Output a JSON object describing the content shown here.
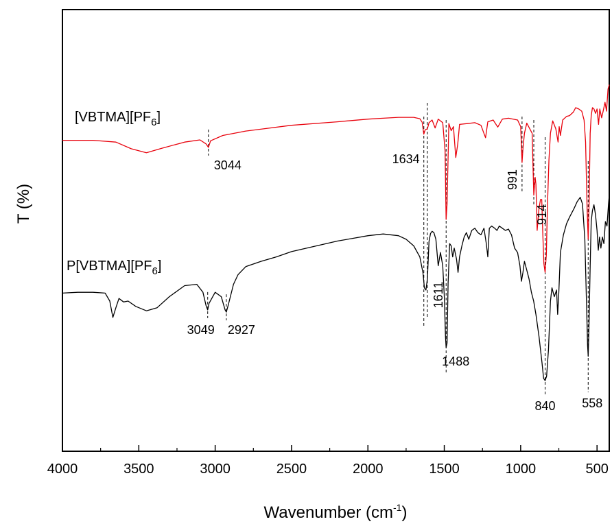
{
  "chart_data": {
    "type": "line",
    "title": "",
    "xlabel": "Wavenumber (cm",
    "xlabel_sup": "-1",
    "xlabel_end": ")",
    "ylabel": "T (%)",
    "xlim": [
      4000,
      420
    ],
    "x_reversed": true,
    "ylim": [
      0,
      100
    ],
    "y_ticks_labeled": false,
    "x_ticks": [
      4000,
      3500,
      3000,
      2500,
      2000,
      1500,
      1000,
      500
    ],
    "x_tick_labels": [
      "4000",
      "3500",
      "3000",
      "2500",
      "2000",
      "1500",
      "1000",
      "500"
    ],
    "grid": false,
    "series": [
      {
        "name": "[VBTMA][PF6]",
        "label_main": "[VBTMA][PF",
        "label_sub": "6",
        "label_end": "]",
        "color": "#e8000b",
        "points": [
          [
            4000,
            70.4
          ],
          [
            3800,
            70.4
          ],
          [
            3650,
            70.0
          ],
          [
            3550,
            68.5
          ],
          [
            3450,
            67.6
          ],
          [
            3350,
            68.6
          ],
          [
            3200,
            70.0
          ],
          [
            3100,
            70.5
          ],
          [
            3060,
            69.6
          ],
          [
            3044,
            68.8
          ],
          [
            3030,
            70.3
          ],
          [
            2950,
            71.5
          ],
          [
            2800,
            72.5
          ],
          [
            2500,
            73.8
          ],
          [
            2200,
            74.6
          ],
          [
            2000,
            75.2
          ],
          [
            1900,
            75.4
          ],
          [
            1800,
            75.6
          ],
          [
            1700,
            75.6
          ],
          [
            1660,
            75.3
          ],
          [
            1645,
            74.5
          ],
          [
            1634,
            71.8
          ],
          [
            1625,
            72.8
          ],
          [
            1611,
            73.0
          ],
          [
            1600,
            74.4
          ],
          [
            1580,
            75.0
          ],
          [
            1560,
            73.2
          ],
          [
            1540,
            75.2
          ],
          [
            1510,
            74.4
          ],
          [
            1495,
            68.0
          ],
          [
            1488,
            52.5
          ],
          [
            1482,
            56.0
          ],
          [
            1470,
            74.2
          ],
          [
            1455,
            72.6
          ],
          [
            1440,
            73.5
          ],
          [
            1425,
            66.5
          ],
          [
            1412,
            69.6
          ],
          [
            1400,
            74.0
          ],
          [
            1350,
            74.2
          ],
          [
            1300,
            74.4
          ],
          [
            1260,
            73.8
          ],
          [
            1230,
            71.0
          ],
          [
            1215,
            74.6
          ],
          [
            1180,
            75.0
          ],
          [
            1150,
            73.4
          ],
          [
            1120,
            75.2
          ],
          [
            1080,
            75.4
          ],
          [
            1020,
            75.0
          ],
          [
            1000,
            73.5
          ],
          [
            991,
            65.4
          ],
          [
            985,
            68.5
          ],
          [
            975,
            72.0
          ],
          [
            960,
            74.3
          ],
          [
            940,
            73.0
          ],
          [
            925,
            72.0
          ],
          [
            914,
            58.0
          ],
          [
            905,
            62.0
          ],
          [
            900,
            60.5
          ],
          [
            892,
            50.0
          ],
          [
            880,
            55.0
          ],
          [
            870,
            57.0
          ],
          [
            862,
            57.0
          ],
          [
            855,
            49.0
          ],
          [
            848,
            42.5
          ],
          [
            840,
            40.5
          ],
          [
            832,
            44.5
          ],
          [
            825,
            55.0
          ],
          [
            815,
            66.0
          ],
          [
            805,
            72.0
          ],
          [
            790,
            74.8
          ],
          [
            770,
            73.0
          ],
          [
            755,
            70.0
          ],
          [
            748,
            73.5
          ],
          [
            740,
            71.5
          ],
          [
            725,
            75.0
          ],
          [
            700,
            75.8
          ],
          [
            680,
            76.0
          ],
          [
            655,
            76.8
          ],
          [
            640,
            77.8
          ],
          [
            620,
            77.5
          ],
          [
            600,
            77.0
          ],
          [
            585,
            75.0
          ],
          [
            575,
            70.0
          ],
          [
            565,
            55.0
          ],
          [
            558,
            48.0
          ],
          [
            552,
            56.0
          ],
          [
            545,
            72.0
          ],
          [
            538,
            76.0
          ],
          [
            530,
            77.8
          ],
          [
            520,
            77.5
          ],
          [
            510,
            76.5
          ],
          [
            500,
            77.5
          ],
          [
            490,
            74.0
          ],
          [
            482,
            77.5
          ],
          [
            470,
            75.5
          ],
          [
            460,
            77.0
          ],
          [
            448,
            79.0
          ],
          [
            438,
            77.0
          ],
          [
            428,
            82.0
          ],
          [
            420,
            83.0
          ]
        ],
        "peaks": [
          {
            "x": 3044,
            "label": "3044"
          },
          {
            "x": 1634,
            "label": "1634"
          },
          {
            "x": 1611,
            "label": ""
          },
          {
            "x": 1488,
            "label": ""
          },
          {
            "x": 991,
            "label": "991"
          },
          {
            "x": 914,
            "label": "914"
          }
        ]
      },
      {
        "name": "P[VBTMA][PF6]",
        "label_main": "P[VBTMA][PF",
        "label_sub": "6",
        "label_end": "]",
        "color": "#000000",
        "points": [
          [
            4000,
            35.8
          ],
          [
            3900,
            36.0
          ],
          [
            3800,
            36.0
          ],
          [
            3720,
            35.8
          ],
          [
            3690,
            34.0
          ],
          [
            3670,
            30.3
          ],
          [
            3650,
            32.5
          ],
          [
            3630,
            34.6
          ],
          [
            3600,
            33.8
          ],
          [
            3570,
            34.0
          ],
          [
            3520,
            32.8
          ],
          [
            3450,
            31.8
          ],
          [
            3380,
            32.5
          ],
          [
            3300,
            35.0
          ],
          [
            3200,
            37.5
          ],
          [
            3120,
            37.8
          ],
          [
            3080,
            36.0
          ],
          [
            3060,
            33.0
          ],
          [
            3049,
            32.0
          ],
          [
            3040,
            33.5
          ],
          [
            3000,
            36.0
          ],
          [
            2960,
            35.0
          ],
          [
            2935,
            32.0
          ],
          [
            2927,
            31.5
          ],
          [
            2915,
            33.0
          ],
          [
            2880,
            37.8
          ],
          [
            2850,
            40.0
          ],
          [
            2800,
            41.8
          ],
          [
            2700,
            43.0
          ],
          [
            2600,
            44.0
          ],
          [
            2500,
            45.2
          ],
          [
            2400,
            46.0
          ],
          [
            2300,
            46.8
          ],
          [
            2200,
            47.6
          ],
          [
            2100,
            48.2
          ],
          [
            2000,
            48.8
          ],
          [
            1900,
            49.2
          ],
          [
            1800,
            48.8
          ],
          [
            1750,
            48.0
          ],
          [
            1700,
            46.5
          ],
          [
            1660,
            44.0
          ],
          [
            1640,
            40.5
          ],
          [
            1630,
            37.0
          ],
          [
            1620,
            36.5
          ],
          [
            1611,
            39.0
          ],
          [
            1600,
            47.5
          ],
          [
            1590,
            49.3
          ],
          [
            1580,
            49.8
          ],
          [
            1568,
            49.5
          ],
          [
            1555,
            48.0
          ],
          [
            1540,
            42.0
          ],
          [
            1525,
            45.0
          ],
          [
            1510,
            42.0
          ],
          [
            1500,
            35.0
          ],
          [
            1492,
            26.0
          ],
          [
            1488,
            23.5
          ],
          [
            1482,
            24.5
          ],
          [
            1475,
            38.0
          ],
          [
            1465,
            47.0
          ],
          [
            1455,
            46.5
          ],
          [
            1445,
            44.0
          ],
          [
            1435,
            46.0
          ],
          [
            1420,
            43.5
          ],
          [
            1410,
            40.5
          ],
          [
            1400,
            44.0
          ],
          [
            1385,
            46.5
          ],
          [
            1370,
            48.5
          ],
          [
            1355,
            49.5
          ],
          [
            1340,
            48.0
          ],
          [
            1320,
            50.0
          ],
          [
            1300,
            50.5
          ],
          [
            1280,
            49.5
          ],
          [
            1260,
            49.0
          ],
          [
            1240,
            50.5
          ],
          [
            1225,
            47.0
          ],
          [
            1215,
            44.0
          ],
          [
            1205,
            50.5
          ],
          [
            1190,
            51.0
          ],
          [
            1170,
            50.5
          ],
          [
            1155,
            50.0
          ],
          [
            1140,
            51.0
          ],
          [
            1120,
            50.5
          ],
          [
            1100,
            50.0
          ],
          [
            1080,
            50.3
          ],
          [
            1060,
            49.0
          ],
          [
            1040,
            46.0
          ],
          [
            1020,
            45.0
          ],
          [
            1005,
            42.0
          ],
          [
            995,
            38.5
          ],
          [
            985,
            40.5
          ],
          [
            975,
            43.0
          ],
          [
            960,
            41.0
          ],
          [
            945,
            39.0
          ],
          [
            930,
            36.0
          ],
          [
            915,
            34.0
          ],
          [
            900,
            31.0
          ],
          [
            880,
            26.0
          ],
          [
            860,
            20.0
          ],
          [
            850,
            16.5
          ],
          [
            840,
            16.0
          ],
          [
            830,
            17.0
          ],
          [
            818,
            23.0
          ],
          [
            805,
            34.0
          ],
          [
            795,
            37.0
          ],
          [
            780,
            35.0
          ],
          [
            765,
            36.5
          ],
          [
            758,
            31.0
          ],
          [
            750,
            36.0
          ],
          [
            740,
            45.0
          ],
          [
            720,
            49.0
          ],
          [
            700,
            51.5
          ],
          [
            680,
            53.0
          ],
          [
            650,
            55.0
          ],
          [
            630,
            56.5
          ],
          [
            610,
            57.5
          ],
          [
            595,
            56.0
          ],
          [
            580,
            48.0
          ],
          [
            570,
            35.0
          ],
          [
            562,
            24.0
          ],
          [
            558,
            21.5
          ],
          [
            553,
            28.0
          ],
          [
            545,
            42.0
          ],
          [
            538,
            52.0
          ],
          [
            530,
            54.5
          ],
          [
            520,
            55.8
          ],
          [
            510,
            53.5
          ],
          [
            500,
            50.0
          ],
          [
            492,
            45.5
          ],
          [
            484,
            48.5
          ],
          [
            475,
            46.0
          ],
          [
            465,
            48.5
          ],
          [
            455,
            47.0
          ],
          [
            445,
            52.0
          ],
          [
            435,
            51.0
          ],
          [
            425,
            56.0
          ],
          [
            420,
            58.0
          ]
        ],
        "peaks": [
          {
            "x": 3049,
            "label": "3049"
          },
          {
            "x": 2927,
            "label": "2927"
          },
          {
            "x": 1611,
            "label": "1611"
          },
          {
            "x": 1488,
            "label": "1488"
          },
          {
            "x": 840,
            "label": "840"
          },
          {
            "x": 558,
            "label": "558"
          }
        ]
      }
    ]
  }
}
